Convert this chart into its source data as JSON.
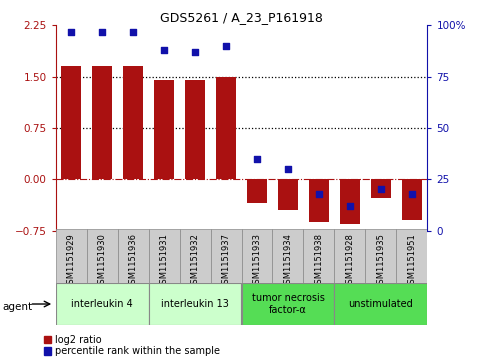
{
  "title": "GDS5261 / A_23_P161918",
  "samples": [
    "GSM1151929",
    "GSM1151930",
    "GSM1151936",
    "GSM1151931",
    "GSM1151932",
    "GSM1151937",
    "GSM1151933",
    "GSM1151934",
    "GSM1151938",
    "GSM1151928",
    "GSM1151935",
    "GSM1151951"
  ],
  "log2_ratio": [
    1.65,
    1.65,
    1.65,
    1.45,
    1.45,
    1.5,
    -0.35,
    -0.45,
    -0.62,
    -0.65,
    -0.28,
    -0.6
  ],
  "percentile_rank": [
    97,
    97,
    97,
    88,
    87,
    90,
    35,
    30,
    18,
    12,
    20,
    18
  ],
  "ylim_left": [
    -0.75,
    2.25
  ],
  "ylim_right": [
    0,
    100
  ],
  "yticks_left": [
    -0.75,
    0,
    0.75,
    1.5,
    2.25
  ],
  "yticks_right": [
    0,
    25,
    50,
    75,
    100
  ],
  "hlines": [
    1.5,
    0.75
  ],
  "zero_line": 0,
  "bar_color": "#AA1111",
  "dot_color": "#1111AA",
  "groups": [
    {
      "label": "interleukin 4",
      "start": 0,
      "end": 3,
      "color": "#ccffcc"
    },
    {
      "label": "interleukin 13",
      "start": 3,
      "end": 6,
      "color": "#ccffcc"
    },
    {
      "label": "tumor necrosis\nfactor-α",
      "start": 6,
      "end": 9,
      "color": "#55dd55"
    },
    {
      "label": "unstimulated",
      "start": 9,
      "end": 12,
      "color": "#55dd55"
    }
  ],
  "agent_label": "agent",
  "legend_bar": "log2 ratio",
  "legend_dot": "percentile rank within the sample",
  "sample_box_color": "#cccccc",
  "sample_box_edge": "#888888"
}
